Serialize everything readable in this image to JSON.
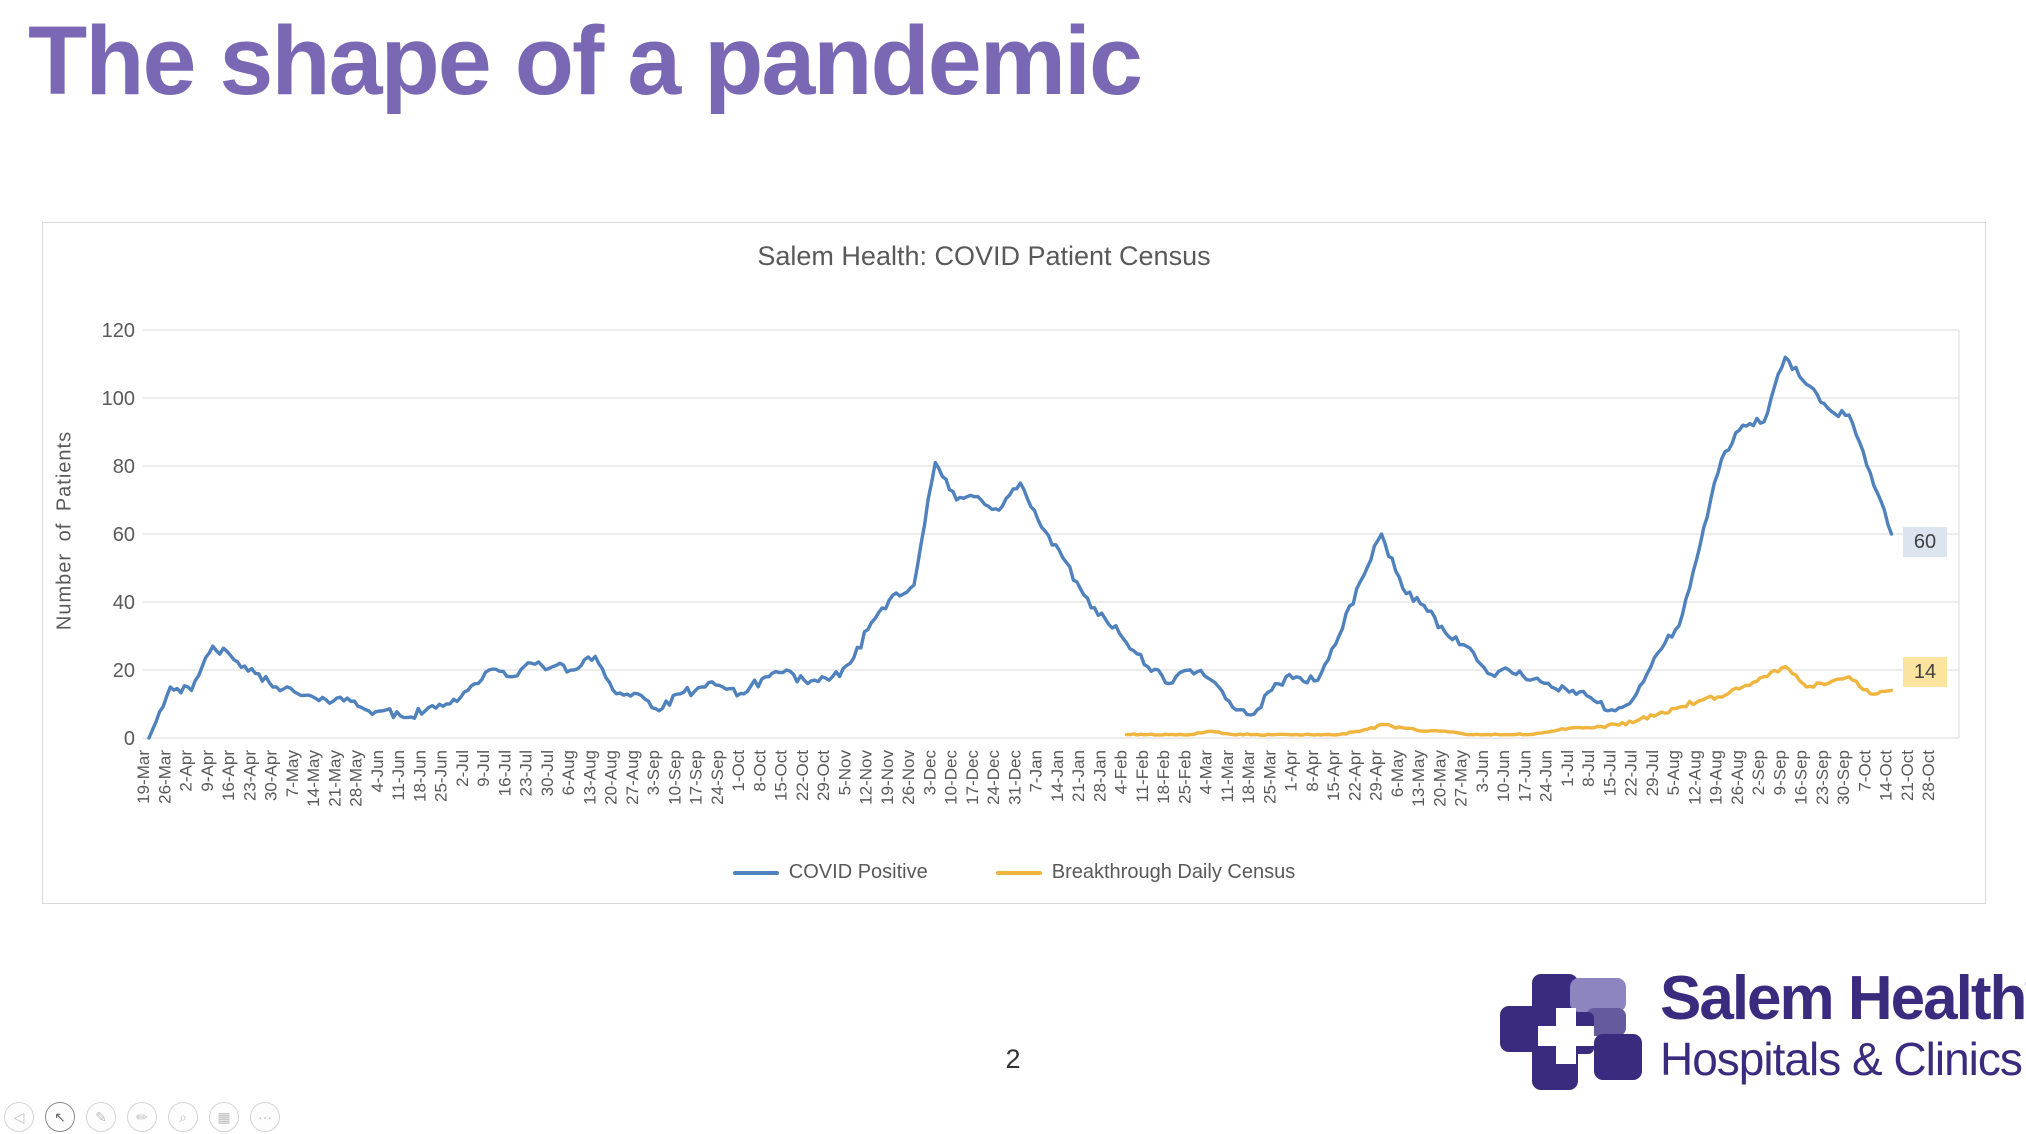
{
  "slide": {
    "title": "The shape of a pandemic",
    "title_color": "#7a68b4",
    "page_number": "2"
  },
  "chart": {
    "border_color": "#d8d8d8",
    "gridline_color": "#d9d9d9",
    "axis_text_color": "#595959",
    "end_label_covid_bg": "#dce4f0",
    "end_label_breakthrough_bg": "#fbe3a0"
  },
  "chart_data": {
    "type": "line",
    "title": "Salem Health: COVID Patient Census",
    "xlabel": "",
    "ylabel": "Number of Patients",
    "ylim": [
      0,
      120
    ],
    "y_ticks": [
      0,
      20,
      40,
      60,
      80,
      100,
      120
    ],
    "grid": "horizontal",
    "legend_position": "bottom",
    "categories": [
      "19-Mar",
      "26-Mar",
      "2-Apr",
      "9-Apr",
      "16-Apr",
      "23-Apr",
      "30-Apr",
      "7-May",
      "14-May",
      "21-May",
      "28-May",
      "4-Jun",
      "11-Jun",
      "18-Jun",
      "25-Jun",
      "2-Jul",
      "9-Jul",
      "16-Jul",
      "23-Jul",
      "30-Jul",
      "6-Aug",
      "13-Aug",
      "20-Aug",
      "27-Aug",
      "3-Sep",
      "10-Sep",
      "17-Sep",
      "24-Sep",
      "1-Oct",
      "8-Oct",
      "15-Oct",
      "22-Oct",
      "29-Oct",
      "5-Nov",
      "12-Nov",
      "19-Nov",
      "26-Nov",
      "3-Dec",
      "10-Dec",
      "17-Dec",
      "24-Dec",
      "31-Dec",
      "7-Jan",
      "14-Jan",
      "21-Jan",
      "28-Jan",
      "4-Feb",
      "11-Feb",
      "18-Feb",
      "25-Feb",
      "4-Mar",
      "11-Mar",
      "18-Mar",
      "25-Mar",
      "1-Apr",
      "8-Apr",
      "15-Apr",
      "22-Apr",
      "29-Apr",
      "6-May",
      "13-May",
      "20-May",
      "27-May",
      "3-Jun",
      "10-Jun",
      "17-Jun",
      "24-Jun",
      "1-Jul",
      "8-Jul",
      "15-Jul",
      "22-Jul",
      "29-Jul",
      "5-Aug",
      "12-Aug",
      "19-Aug",
      "26-Aug",
      "2-Sep",
      "9-Sep",
      "16-Sep",
      "23-Sep",
      "30-Sep",
      "7-Oct",
      "14-Oct",
      "21-Oct",
      "28-Oct"
    ],
    "series": [
      {
        "name": "COVID Positive",
        "color": "#4f81bd",
        "end_label": "60",
        "values": [
          0,
          15,
          14,
          27,
          23,
          19,
          15,
          13,
          11,
          12,
          9,
          8,
          6,
          8,
          10,
          14,
          20,
          18,
          22,
          21,
          20,
          24,
          13,
          13,
          8,
          13,
          15,
          15,
          13,
          18,
          20,
          16,
          17,
          22,
          34,
          42,
          45,
          81,
          70,
          71,
          67,
          75,
          62,
          53,
          42,
          35,
          28,
          21,
          16,
          20,
          17,
          9,
          7,
          16,
          18,
          17,
          30,
          46,
          60,
          44,
          39,
          31,
          27,
          19,
          20,
          17,
          15,
          14,
          11,
          8,
          13,
          25,
          33,
          57,
          82,
          92,
          93,
          112,
          104,
          97,
          95,
          78,
          60,
          null,
          null
        ]
      },
      {
        "name": "Breakthrough Daily Census",
        "color": "#efb53e",
        "end_label": "14",
        "values": [
          null,
          null,
          null,
          null,
          null,
          null,
          null,
          null,
          null,
          null,
          null,
          null,
          null,
          null,
          null,
          null,
          null,
          null,
          null,
          null,
          null,
          null,
          null,
          null,
          null,
          null,
          null,
          null,
          null,
          null,
          null,
          null,
          null,
          null,
          null,
          null,
          null,
          null,
          null,
          null,
          null,
          null,
          null,
          null,
          null,
          null,
          1,
          1,
          1,
          1,
          2,
          1,
          1,
          1,
          1,
          1,
          1,
          2,
          4,
          3,
          2,
          2,
          1,
          1,
          1,
          1,
          2,
          3,
          3,
          4,
          5,
          7,
          9,
          11,
          12,
          15,
          18,
          21,
          15,
          16,
          18,
          13,
          14,
          null,
          null
        ]
      }
    ]
  },
  "logo": {
    "name": "Salem Health",
    "registered": "®",
    "tagline": "Hospitals & Clinics",
    "color": "#3b2b7e",
    "accent_color": "#8d85bf"
  },
  "toolbar": {
    "buttons": [
      {
        "name": "previous-slide-button",
        "glyph": "◁"
      },
      {
        "name": "pointer-tool-button",
        "glyph": "↖",
        "active": true
      },
      {
        "name": "pen-tool-button",
        "glyph": "✎"
      },
      {
        "name": "highlighter-tool-button",
        "glyph": "✏"
      },
      {
        "name": "zoom-button",
        "glyph": "⌕"
      },
      {
        "name": "see-all-slides-button",
        "glyph": "▦"
      },
      {
        "name": "more-options-button",
        "glyph": "···"
      }
    ]
  }
}
